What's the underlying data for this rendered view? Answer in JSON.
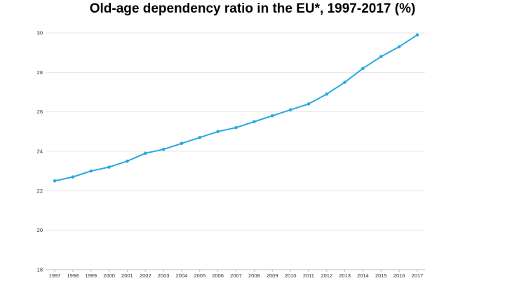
{
  "chart_data": {
    "type": "line",
    "title": "Old-age dependency ratio in the EU*, 1997-2017 (%)",
    "xlabel": "",
    "ylabel": "",
    "categories": [
      "1997",
      "1998",
      "1999",
      "2000",
      "2001",
      "2002",
      "2003",
      "2004",
      "2005",
      "2006",
      "2007",
      "2008",
      "2009",
      "2010",
      "2011",
      "2012",
      "2013",
      "2014",
      "2015",
      "2016",
      "2017"
    ],
    "series": [
      {
        "name": "Old-age dependency ratio",
        "values": [
          22.5,
          22.7,
          23.0,
          23.2,
          23.5,
          23.9,
          24.1,
          24.4,
          24.7,
          25.0,
          25.2,
          25.5,
          25.8,
          26.1,
          26.4,
          26.9,
          27.5,
          28.2,
          28.8,
          29.3,
          29.9
        ]
      }
    ],
    "yticks": [
      18,
      20,
      22,
      24,
      26,
      28,
      30
    ],
    "ylim": [
      18,
      30
    ],
    "grid": true,
    "colors": {
      "line": "#29a8df",
      "grid": "#e6e6e6",
      "axis": "#bbbbbb"
    }
  }
}
